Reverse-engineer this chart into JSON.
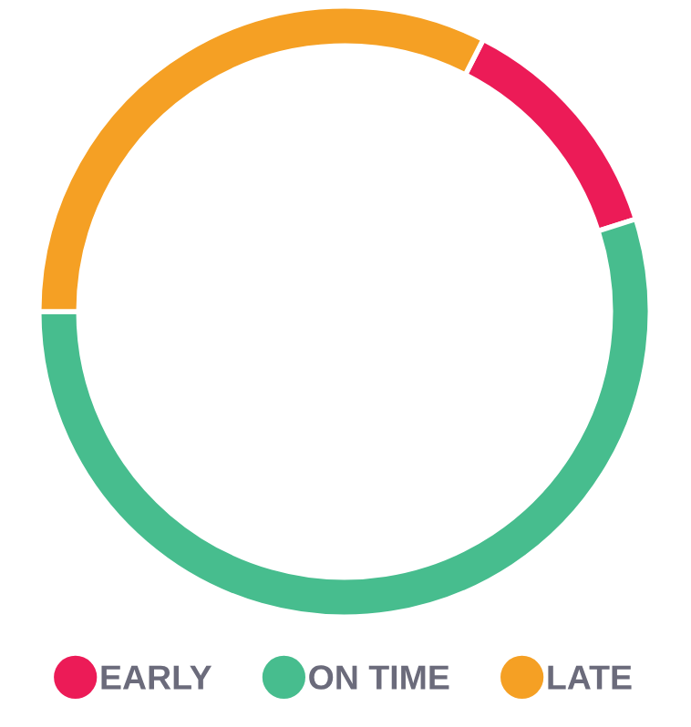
{
  "chart_data": {
    "type": "donut",
    "categories": [
      "EARLY",
      "ON TIME",
      "LATE"
    ],
    "values": [
      12.6,
      54.9,
      32.5
    ],
    "colors": [
      "#ec1b57",
      "#47bd8e",
      "#f5a024"
    ],
    "legend": "bottom"
  }
}
